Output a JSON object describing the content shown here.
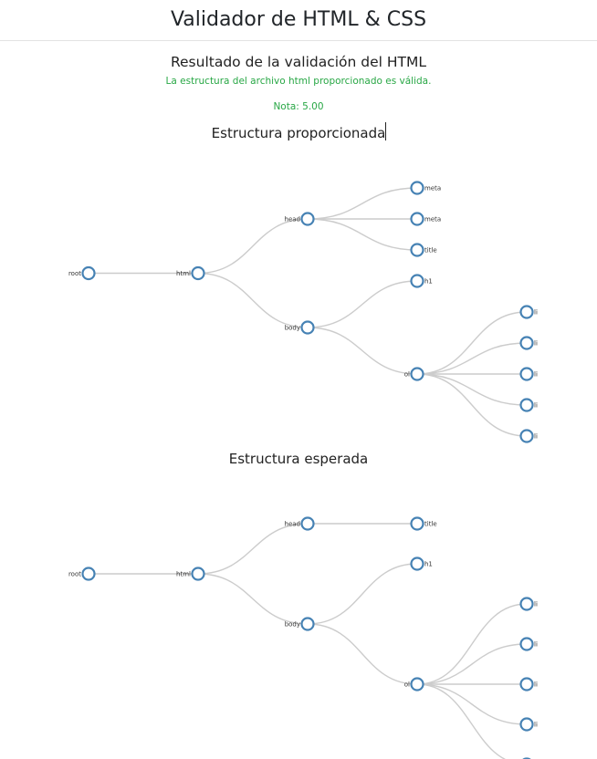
{
  "header": {
    "title": "Validador de HTML & CSS"
  },
  "result": {
    "title": "Resultado de la validación del HTML",
    "message": "La estructura del archivo html proporcionado es válida.",
    "grade": "Nota: 5.00"
  },
  "colors": {
    "success": "#28a745",
    "node_stroke": "#4682b4",
    "link": "#cccccc"
  },
  "trees": {
    "provided": {
      "title": "Estructura proporcionada",
      "root": {
        "name": "root",
        "children": [
          {
            "name": "html",
            "children": [
              {
                "name": "head",
                "children": [
                  {
                    "name": "meta"
                  },
                  {
                    "name": "meta"
                  },
                  {
                    "name": "title"
                  }
                ]
              },
              {
                "name": "body",
                "children": [
                  {
                    "name": "h1"
                  },
                  {
                    "name": "ol",
                    "children": [
                      {
                        "name": "li"
                      },
                      {
                        "name": "li"
                      },
                      {
                        "name": "li"
                      },
                      {
                        "name": "li"
                      },
                      {
                        "name": "li"
                      }
                    ]
                  }
                ]
              }
            ]
          }
        ]
      }
    },
    "expected": {
      "title": "Estructura esperada",
      "root": {
        "name": "root",
        "children": [
          {
            "name": "html",
            "children": [
              {
                "name": "head",
                "children": [
                  {
                    "name": "title"
                  }
                ]
              },
              {
                "name": "body",
                "children": [
                  {
                    "name": "h1"
                  },
                  {
                    "name": "ol",
                    "children": [
                      {
                        "name": "li"
                      },
                      {
                        "name": "li"
                      },
                      {
                        "name": "li"
                      },
                      {
                        "name": "li"
                      },
                      {
                        "name": "li"
                      }
                    ]
                  }
                ]
              }
            ]
          }
        ]
      }
    }
  }
}
